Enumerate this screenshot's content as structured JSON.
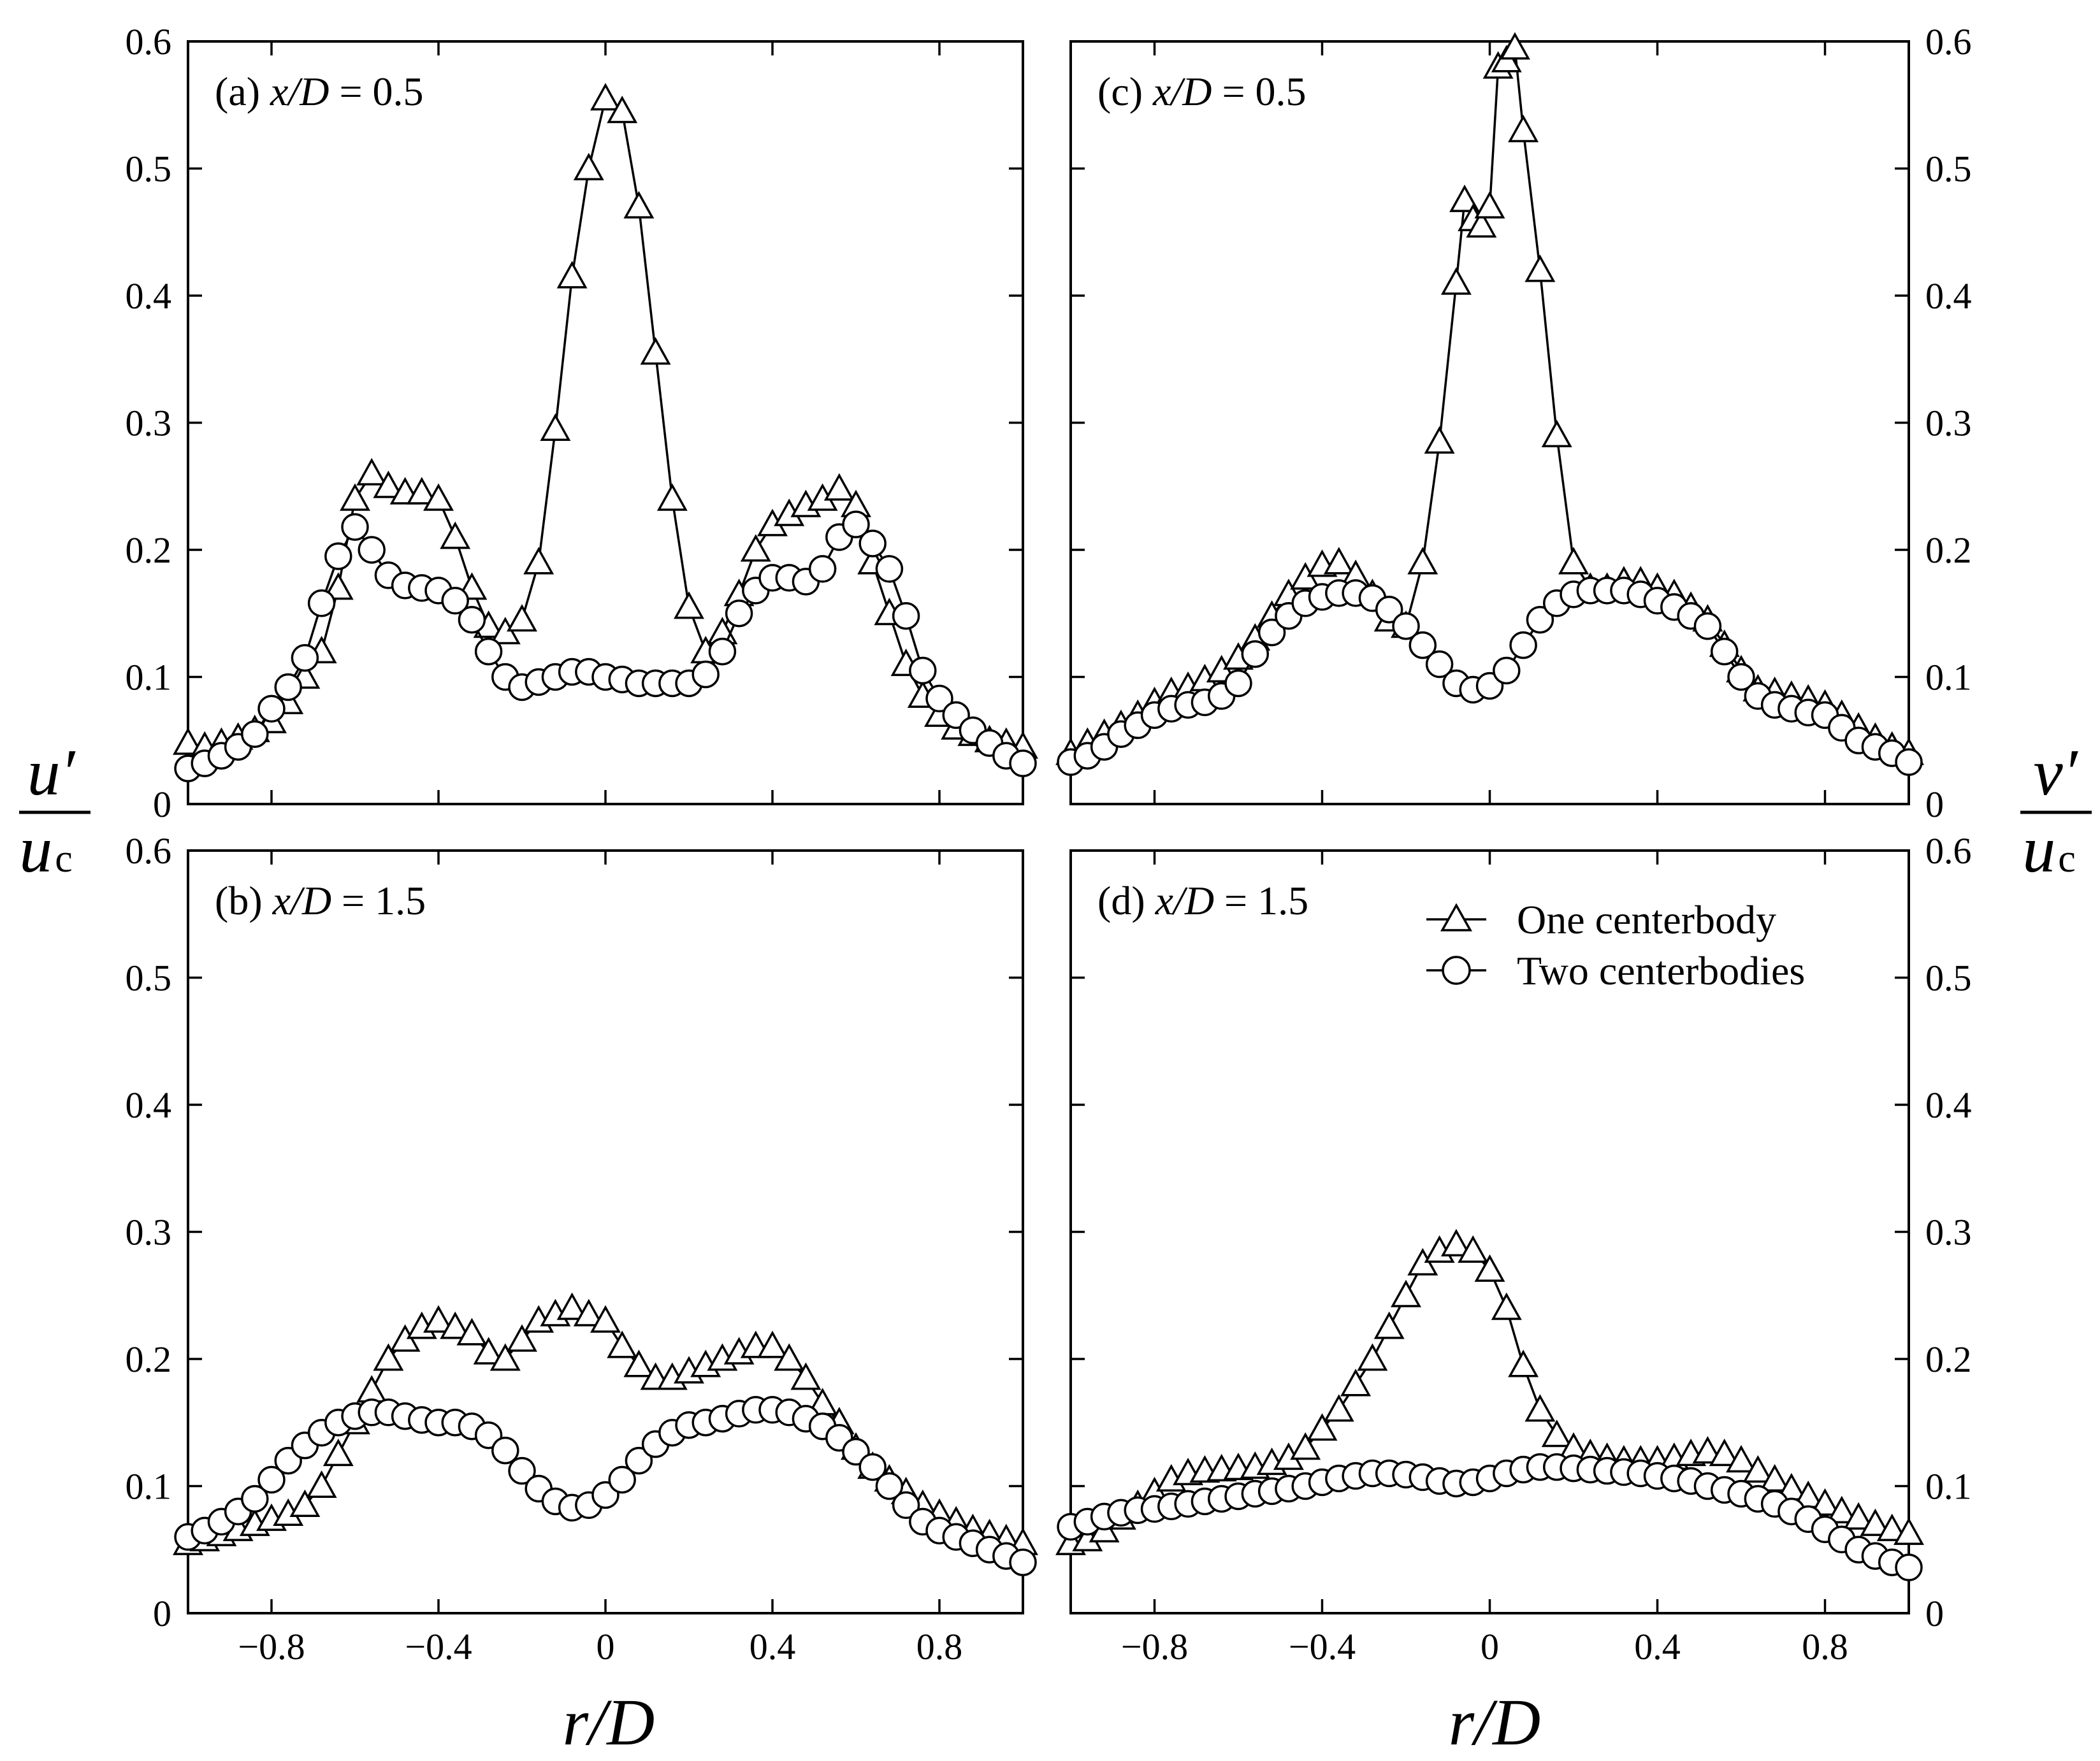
{
  "figure": {
    "left_ylabel": {
      "base": "u′",
      "sub": "c",
      "den_base": "u"
    },
    "right_ylabel": {
      "base": "v′",
      "sub": "c",
      "den_base": "u"
    },
    "xlabel": "r/D"
  },
  "legend": {
    "items": [
      {
        "name": "One centerbody",
        "marker": "triangle"
      },
      {
        "name": "Two centerbodies",
        "marker": "circle"
      }
    ]
  },
  "chart_data": [
    {
      "type": "line",
      "panel": "a",
      "label": "(a) x/D = 0.5",
      "label_parts": {
        "prefix": "(a) ",
        "var": "x/D",
        "rest": " = 0.5"
      },
      "xlim": [
        -1,
        1
      ],
      "ylim": [
        0,
        0.6
      ],
      "xticks": [
        -0.8,
        -0.4,
        0,
        0.4,
        0.8
      ],
      "xtick_labels": [
        "−0.8",
        "−0.4",
        "0",
        "0.4",
        "0.8"
      ],
      "yticks": [
        0,
        0.1,
        0.2,
        0.3,
        0.4,
        0.5,
        0.6
      ],
      "ytick_labels": [
        "0",
        "0.1",
        "0.2",
        "0.3",
        "0.4",
        "0.5",
        "0.6"
      ],
      "series": [
        {
          "name": "One centerbody",
          "marker": "triangle",
          "x": [
            -1.0,
            -0.96,
            -0.92,
            -0.88,
            -0.84,
            -0.8,
            -0.76,
            -0.72,
            -0.68,
            -0.64,
            -0.6,
            -0.56,
            -0.52,
            -0.48,
            -0.44,
            -0.4,
            -0.36,
            -0.32,
            -0.28,
            -0.24,
            -0.2,
            -0.16,
            -0.12,
            -0.08,
            -0.04,
            0.0,
            0.04,
            0.08,
            0.12,
            0.16,
            0.2,
            0.24,
            0.28,
            0.32,
            0.36,
            0.4,
            0.44,
            0.48,
            0.52,
            0.56,
            0.6,
            0.64,
            0.68,
            0.72,
            0.76,
            0.8,
            0.84,
            0.88,
            0.92,
            0.96,
            1.0
          ],
          "y": [
            0.048,
            0.045,
            0.048,
            0.052,
            0.058,
            0.065,
            0.08,
            0.1,
            0.12,
            0.17,
            0.24,
            0.26,
            0.25,
            0.245,
            0.245,
            0.24,
            0.21,
            0.17,
            0.14,
            0.135,
            0.145,
            0.19,
            0.295,
            0.415,
            0.5,
            0.555,
            0.545,
            0.47,
            0.355,
            0.24,
            0.155,
            0.12,
            0.135,
            0.165,
            0.2,
            0.22,
            0.228,
            0.235,
            0.24,
            0.248,
            0.235,
            0.19,
            0.15,
            0.11,
            0.085,
            0.07,
            0.06,
            0.055,
            0.05,
            0.048,
            0.045
          ]
        },
        {
          "name": "Two centerbodies",
          "marker": "circle",
          "x": [
            -1.0,
            -0.96,
            -0.92,
            -0.88,
            -0.84,
            -0.8,
            -0.76,
            -0.72,
            -0.68,
            -0.64,
            -0.6,
            -0.56,
            -0.52,
            -0.48,
            -0.44,
            -0.4,
            -0.36,
            -0.32,
            -0.28,
            -0.24,
            -0.2,
            -0.16,
            -0.12,
            -0.08,
            -0.04,
            0.0,
            0.04,
            0.08,
            0.12,
            0.16,
            0.2,
            0.24,
            0.28,
            0.32,
            0.36,
            0.4,
            0.44,
            0.48,
            0.52,
            0.56,
            0.6,
            0.64,
            0.68,
            0.72,
            0.76,
            0.8,
            0.84,
            0.88,
            0.92,
            0.96,
            1.0
          ],
          "y": [
            0.028,
            0.032,
            0.038,
            0.045,
            0.055,
            0.075,
            0.092,
            0.115,
            0.158,
            0.195,
            0.218,
            0.2,
            0.18,
            0.172,
            0.17,
            0.168,
            0.16,
            0.145,
            0.12,
            0.1,
            0.092,
            0.096,
            0.1,
            0.104,
            0.104,
            0.1,
            0.098,
            0.095,
            0.095,
            0.095,
            0.095,
            0.102,
            0.12,
            0.15,
            0.168,
            0.178,
            0.178,
            0.175,
            0.185,
            0.21,
            0.22,
            0.205,
            0.185,
            0.148,
            0.105,
            0.083,
            0.07,
            0.058,
            0.048,
            0.038,
            0.032
          ]
        }
      ]
    },
    {
      "type": "line",
      "panel": "b",
      "label": "(b) x/D = 1.5",
      "label_parts": {
        "prefix": "(b) ",
        "var": "x/D",
        "rest": " = 1.5"
      },
      "xlim": [
        -1,
        1
      ],
      "ylim": [
        0,
        0.6
      ],
      "xticks": [
        -0.8,
        -0.4,
        0,
        0.4,
        0.8
      ],
      "xtick_labels": [
        "−0.8",
        "−0.4",
        "0",
        "0.4",
        "0.8"
      ],
      "yticks": [
        0,
        0.1,
        0.2,
        0.3,
        0.4,
        0.5,
        0.6
      ],
      "ytick_labels": [
        "0",
        "0.1",
        "0.2",
        "0.3",
        "0.4",
        "0.5",
        "0.6"
      ],
      "series": [
        {
          "name": "One centerbody",
          "marker": "triangle",
          "x": [
            -1.0,
            -0.96,
            -0.92,
            -0.88,
            -0.84,
            -0.8,
            -0.76,
            -0.72,
            -0.68,
            -0.64,
            -0.6,
            -0.56,
            -0.52,
            -0.48,
            -0.44,
            -0.4,
            -0.36,
            -0.32,
            -0.28,
            -0.24,
            -0.2,
            -0.16,
            -0.12,
            -0.08,
            -0.04,
            0.0,
            0.04,
            0.08,
            0.12,
            0.16,
            0.2,
            0.24,
            0.28,
            0.32,
            0.36,
            0.4,
            0.44,
            0.48,
            0.52,
            0.56,
            0.6,
            0.64,
            0.68,
            0.72,
            0.76,
            0.8,
            0.84,
            0.88,
            0.92,
            0.96,
            1.0
          ],
          "y": [
            0.055,
            0.058,
            0.062,
            0.066,
            0.07,
            0.074,
            0.078,
            0.085,
            0.1,
            0.125,
            0.15,
            0.175,
            0.2,
            0.215,
            0.225,
            0.23,
            0.225,
            0.22,
            0.205,
            0.2,
            0.215,
            0.23,
            0.235,
            0.24,
            0.235,
            0.23,
            0.21,
            0.195,
            0.185,
            0.185,
            0.19,
            0.195,
            0.2,
            0.205,
            0.21,
            0.21,
            0.2,
            0.185,
            0.165,
            0.15,
            0.13,
            0.115,
            0.105,
            0.095,
            0.085,
            0.078,
            0.072,
            0.066,
            0.062,
            0.058,
            0.055
          ]
        },
        {
          "name": "Two centerbodies",
          "marker": "circle",
          "x": [
            -1.0,
            -0.96,
            -0.92,
            -0.88,
            -0.84,
            -0.8,
            -0.76,
            -0.72,
            -0.68,
            -0.64,
            -0.6,
            -0.56,
            -0.52,
            -0.48,
            -0.44,
            -0.4,
            -0.36,
            -0.32,
            -0.28,
            -0.24,
            -0.2,
            -0.16,
            -0.12,
            -0.08,
            -0.04,
            0.0,
            0.04,
            0.08,
            0.12,
            0.16,
            0.2,
            0.24,
            0.28,
            0.32,
            0.36,
            0.4,
            0.44,
            0.48,
            0.52,
            0.56,
            0.6,
            0.64,
            0.68,
            0.72,
            0.76,
            0.8,
            0.84,
            0.88,
            0.92,
            0.96,
            1.0
          ],
          "y": [
            0.06,
            0.065,
            0.072,
            0.08,
            0.09,
            0.105,
            0.12,
            0.132,
            0.142,
            0.15,
            0.155,
            0.158,
            0.158,
            0.155,
            0.152,
            0.15,
            0.15,
            0.147,
            0.14,
            0.128,
            0.112,
            0.098,
            0.088,
            0.083,
            0.085,
            0.093,
            0.105,
            0.12,
            0.133,
            0.142,
            0.148,
            0.15,
            0.153,
            0.157,
            0.16,
            0.16,
            0.158,
            0.153,
            0.147,
            0.138,
            0.127,
            0.115,
            0.1,
            0.085,
            0.072,
            0.065,
            0.06,
            0.055,
            0.05,
            0.045,
            0.04
          ]
        }
      ]
    },
    {
      "type": "line",
      "panel": "c",
      "label": "(c) x/D = 0.5",
      "label_parts": {
        "prefix": "(c) ",
        "var": "x/D",
        "rest": " = 0.5"
      },
      "xlim": [
        -1,
        1
      ],
      "ylim": [
        0,
        0.6
      ],
      "xticks": [
        -0.8,
        -0.4,
        0,
        0.4,
        0.8
      ],
      "xtick_labels": [
        "−0.8",
        "−0.4",
        "0",
        "0.4",
        "0.8"
      ],
      "yticks": [
        0,
        0.1,
        0.2,
        0.3,
        0.4,
        0.5,
        0.6
      ],
      "ytick_labels": [
        "0",
        "0.1",
        "0.2",
        "0.3",
        "0.4",
        "0.5",
        "0.6"
      ],
      "series": [
        {
          "name": "One centerbody",
          "marker": "triangle",
          "x": [
            -1.0,
            -0.96,
            -0.92,
            -0.88,
            -0.84,
            -0.8,
            -0.76,
            -0.72,
            -0.68,
            -0.64,
            -0.6,
            -0.56,
            -0.52,
            -0.48,
            -0.44,
            -0.4,
            -0.36,
            -0.32,
            -0.28,
            -0.24,
            -0.2,
            -0.16,
            -0.12,
            -0.08,
            -0.06,
            -0.04,
            -0.02,
            0.0,
            0.02,
            0.04,
            0.06,
            0.08,
            0.12,
            0.16,
            0.2,
            0.24,
            0.28,
            0.32,
            0.36,
            0.4,
            0.44,
            0.48,
            0.52,
            0.56,
            0.6,
            0.64,
            0.68,
            0.72,
            0.76,
            0.8,
            0.84,
            0.88,
            0.92,
            0.96,
            1.0
          ],
          "y": [
            0.04,
            0.048,
            0.055,
            0.062,
            0.07,
            0.08,
            0.088,
            0.092,
            0.098,
            0.105,
            0.115,
            0.13,
            0.148,
            0.165,
            0.178,
            0.188,
            0.19,
            0.18,
            0.165,
            0.145,
            0.14,
            0.19,
            0.285,
            0.41,
            0.475,
            0.46,
            0.455,
            0.47,
            0.58,
            0.585,
            0.595,
            0.53,
            0.42,
            0.29,
            0.19,
            0.17,
            0.17,
            0.175,
            0.175,
            0.17,
            0.165,
            0.155,
            0.145,
            0.125,
            0.105,
            0.09,
            0.088,
            0.085,
            0.082,
            0.078,
            0.07,
            0.06,
            0.052,
            0.045,
            0.04
          ]
        },
        {
          "name": "Two centerbodies",
          "marker": "circle",
          "x": [
            -1.0,
            -0.96,
            -0.92,
            -0.88,
            -0.84,
            -0.8,
            -0.76,
            -0.72,
            -0.68,
            -0.64,
            -0.6,
            -0.56,
            -0.52,
            -0.48,
            -0.44,
            -0.4,
            -0.36,
            -0.32,
            -0.28,
            -0.24,
            -0.2,
            -0.16,
            -0.12,
            -0.08,
            -0.04,
            0.0,
            0.04,
            0.08,
            0.12,
            0.16,
            0.2,
            0.24,
            0.28,
            0.32,
            0.36,
            0.4,
            0.44,
            0.48,
            0.52,
            0.56,
            0.6,
            0.64,
            0.68,
            0.72,
            0.76,
            0.8,
            0.84,
            0.88,
            0.92,
            0.96,
            1.0
          ],
          "y": [
            0.033,
            0.038,
            0.045,
            0.055,
            0.062,
            0.07,
            0.075,
            0.078,
            0.08,
            0.085,
            0.095,
            0.118,
            0.135,
            0.148,
            0.158,
            0.163,
            0.166,
            0.166,
            0.162,
            0.153,
            0.14,
            0.125,
            0.11,
            0.095,
            0.09,
            0.093,
            0.105,
            0.125,
            0.145,
            0.158,
            0.165,
            0.168,
            0.168,
            0.168,
            0.165,
            0.16,
            0.155,
            0.148,
            0.14,
            0.12,
            0.1,
            0.085,
            0.078,
            0.075,
            0.072,
            0.07,
            0.06,
            0.05,
            0.045,
            0.04,
            0.033
          ]
        }
      ]
    },
    {
      "type": "line",
      "panel": "d",
      "label": "(d) x/D = 1.5",
      "label_parts": {
        "prefix": "(d) ",
        "var": "x/D",
        "rest": " = 1.5"
      },
      "xlim": [
        -1,
        1
      ],
      "ylim": [
        0,
        0.6
      ],
      "xticks": [
        -0.8,
        -0.4,
        0,
        0.4,
        0.8
      ],
      "xtick_labels": [
        "−0.8",
        "−0.4",
        "0",
        "0.4",
        "0.8"
      ],
      "yticks": [
        0,
        0.1,
        0.2,
        0.3,
        0.4,
        0.5,
        0.6
      ],
      "ytick_labels": [
        "0",
        "0.1",
        "0.2",
        "0.3",
        "0.4",
        "0.5",
        "0.6"
      ],
      "series": [
        {
          "name": "One centerbody",
          "marker": "triangle",
          "x": [
            -1.0,
            -0.96,
            -0.92,
            -0.88,
            -0.84,
            -0.8,
            -0.76,
            -0.72,
            -0.68,
            -0.64,
            -0.6,
            -0.56,
            -0.52,
            -0.48,
            -0.44,
            -0.4,
            -0.36,
            -0.32,
            -0.28,
            -0.24,
            -0.2,
            -0.16,
            -0.12,
            -0.08,
            -0.04,
            0.0,
            0.04,
            0.08,
            0.12,
            0.16,
            0.2,
            0.24,
            0.28,
            0.32,
            0.36,
            0.4,
            0.44,
            0.48,
            0.52,
            0.56,
            0.6,
            0.64,
            0.68,
            0.72,
            0.76,
            0.8,
            0.84,
            0.88,
            0.92,
            0.96,
            1.0
          ],
          "y": [
            0.055,
            0.058,
            0.065,
            0.075,
            0.085,
            0.095,
            0.105,
            0.11,
            0.112,
            0.113,
            0.114,
            0.115,
            0.118,
            0.122,
            0.13,
            0.145,
            0.16,
            0.18,
            0.2,
            0.225,
            0.25,
            0.275,
            0.285,
            0.29,
            0.285,
            0.27,
            0.24,
            0.195,
            0.16,
            0.14,
            0.13,
            0.125,
            0.122,
            0.12,
            0.12,
            0.12,
            0.122,
            0.125,
            0.127,
            0.125,
            0.12,
            0.112,
            0.105,
            0.098,
            0.092,
            0.086,
            0.08,
            0.075,
            0.07,
            0.066,
            0.063
          ]
        },
        {
          "name": "Two centerbodies",
          "marker": "circle",
          "x": [
            -1.0,
            -0.96,
            -0.92,
            -0.88,
            -0.84,
            -0.8,
            -0.76,
            -0.72,
            -0.68,
            -0.64,
            -0.6,
            -0.56,
            -0.52,
            -0.48,
            -0.44,
            -0.4,
            -0.36,
            -0.32,
            -0.28,
            -0.24,
            -0.2,
            -0.16,
            -0.12,
            -0.08,
            -0.04,
            0.0,
            0.04,
            0.08,
            0.12,
            0.16,
            0.2,
            0.24,
            0.28,
            0.32,
            0.36,
            0.4,
            0.44,
            0.48,
            0.52,
            0.56,
            0.6,
            0.64,
            0.68,
            0.72,
            0.76,
            0.8,
            0.84,
            0.88,
            0.92,
            0.96,
            1.0
          ],
          "y": [
            0.068,
            0.072,
            0.076,
            0.079,
            0.081,
            0.082,
            0.084,
            0.086,
            0.088,
            0.09,
            0.092,
            0.094,
            0.096,
            0.098,
            0.1,
            0.103,
            0.106,
            0.108,
            0.11,
            0.11,
            0.109,
            0.107,
            0.104,
            0.102,
            0.103,
            0.106,
            0.11,
            0.113,
            0.115,
            0.115,
            0.114,
            0.113,
            0.112,
            0.111,
            0.11,
            0.108,
            0.106,
            0.104,
            0.1,
            0.097,
            0.094,
            0.09,
            0.086,
            0.08,
            0.074,
            0.066,
            0.058,
            0.05,
            0.045,
            0.04,
            0.036
          ]
        }
      ]
    }
  ]
}
